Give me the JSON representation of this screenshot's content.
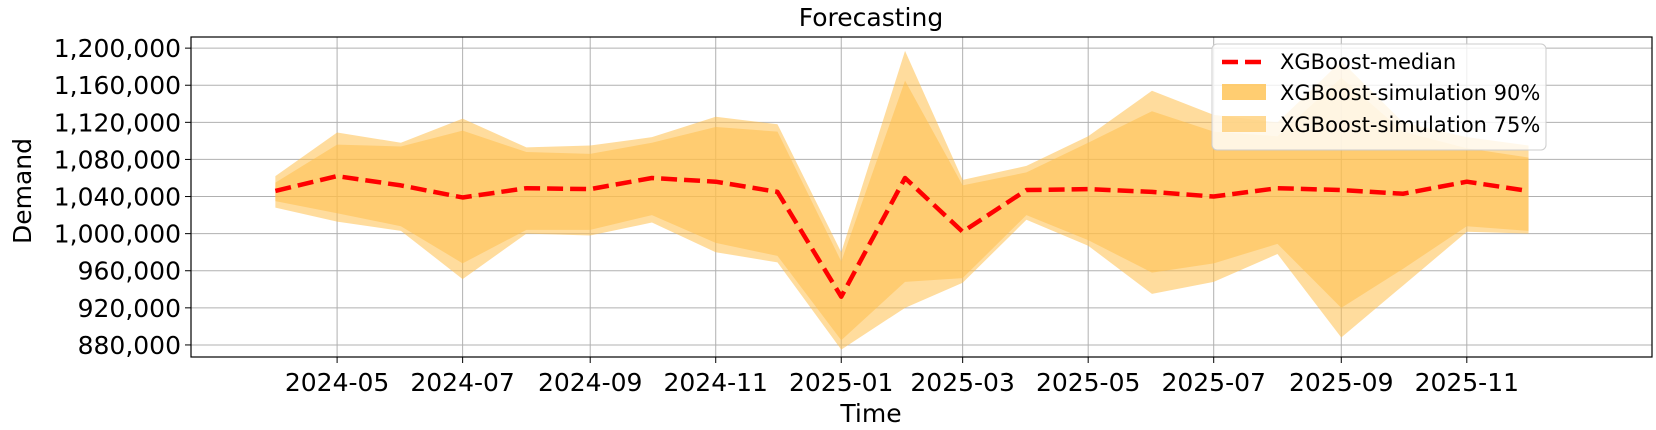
{
  "chart_data": {
    "type": "line",
    "title": "Forecasting",
    "xlabel": "Time",
    "ylabel": "Demand",
    "ylim": [
      867000,
      1212000
    ],
    "xlim": [
      "2024-02-20",
      "2026-01-30"
    ],
    "grid": true,
    "legend_position": "top-right",
    "y_ticks": [
      "880,000",
      "920,000",
      "960,000",
      "1,000,000",
      "1,040,000",
      "1,080,000",
      "1,120,000",
      "1,160,000",
      "1,200,000"
    ],
    "y_tick_values": [
      880000,
      920000,
      960000,
      1000000,
      1040000,
      1080000,
      1120000,
      1160000,
      1200000
    ],
    "x_ticks": [
      "2024-05",
      "2024-07",
      "2024-09",
      "2024-11",
      "2025-01",
      "2025-03",
      "2025-05",
      "2025-07",
      "2025-09",
      "2025-11"
    ],
    "x_tick_dates": [
      "2024-05-01",
      "2024-07-01",
      "2024-09-01",
      "2024-11-01",
      "2025-01-01",
      "2025-03-01",
      "2025-05-01",
      "2025-07-01",
      "2025-09-01",
      "2025-11-01"
    ],
    "x": [
      "2024-04-01",
      "2024-05-01",
      "2024-06-01",
      "2024-07-01",
      "2024-08-01",
      "2024-09-01",
      "2024-10-01",
      "2024-11-01",
      "2024-12-01",
      "2025-01-01",
      "2025-02-01",
      "2025-03-01",
      "2025-04-01",
      "2025-05-01",
      "2025-06-01",
      "2025-07-01",
      "2025-08-01",
      "2025-09-01",
      "2025-10-01",
      "2025-11-01",
      "2025-12-01"
    ],
    "series": [
      {
        "name": "XGBoost-median",
        "style": "dashed",
        "color": "#ff0000",
        "values": [
          1046000,
          1062000,
          1052000,
          1039000,
          1049000,
          1048000,
          1060000,
          1056000,
          1045000,
          932000,
          1060000,
          1002000,
          1047000,
          1048000,
          1045000,
          1040000,
          1049000,
          1047000,
          1043000,
          1056000,
          1046000
        ]
      },
      {
        "name": "XGBoost-simulation 90%",
        "color": "#ffc04d",
        "lower": [
          1028000,
          1013000,
          1003000,
          951000,
          1000000,
          998000,
          1012000,
          980000,
          969000,
          875000,
          920000,
          947000,
          1015000,
          987000,
          935000,
          948000,
          978000,
          888000,
          944000,
          1002000,
          1000000
        ],
        "upper": [
          1062000,
          1109000,
          1098000,
          1124000,
          1093000,
          1095000,
          1104000,
          1126000,
          1118000,
          980000,
          1197000,
          1058000,
          1073000,
          1105000,
          1154000,
          1128000,
          1120000,
          1186000,
          1120000,
          1104000,
          1095000
        ]
      },
      {
        "name": "XGBoost-simulation 75%",
        "color": "#ffc04d",
        "lower": [
          1035000,
          1022000,
          1008000,
          968000,
          1004000,
          1004000,
          1020000,
          990000,
          976000,
          885000,
          948000,
          952000,
          1020000,
          993000,
          958000,
          968000,
          989000,
          920000,
          962000,
          1008000,
          1003000
        ],
        "upper": [
          1055000,
          1096000,
          1094000,
          1111000,
          1088000,
          1086000,
          1098000,
          1115000,
          1110000,
          970000,
          1165000,
          1052000,
          1066000,
          1098000,
          1132000,
          1110000,
          1105000,
          1168000,
          1110000,
          1092000,
          1082000
        ]
      }
    ]
  }
}
